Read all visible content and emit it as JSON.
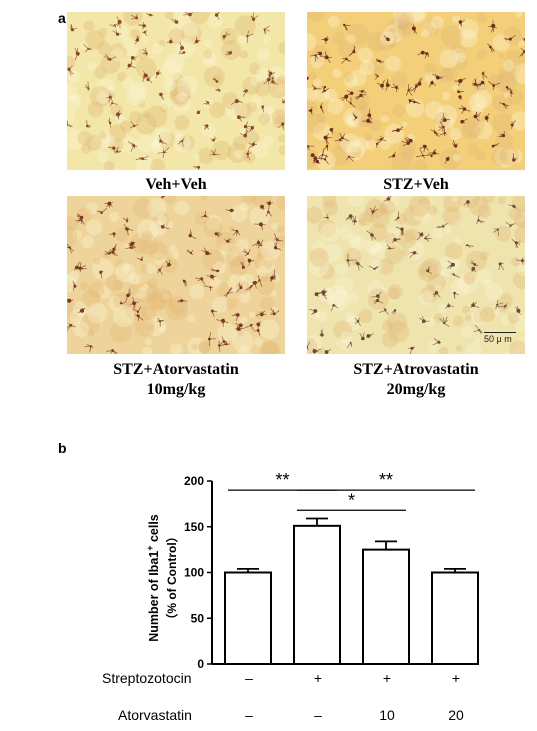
{
  "panels": {
    "a": "a",
    "b": "b"
  },
  "micrographs": [
    {
      "label": "Veh+Veh",
      "base": "#f2e6a8",
      "dots": "#8a4a2a",
      "density": 70
    },
    {
      "label": "STZ+Veh",
      "base": "#f3cf7a",
      "dots": "#6e2f1c",
      "density": 90
    },
    {
      "label": "STZ+Atorvastatin\n10mg/kg",
      "base": "#eed49a",
      "dots": "#7a3a24",
      "density": 80
    },
    {
      "label": "STZ+Atrovastatin\n20mg/kg",
      "base": "#efe4ae",
      "dots": "#6f4a36",
      "density": 60
    }
  ],
  "scale_bar": "50 μ m",
  "chart_data": {
    "type": "bar",
    "ylabel_line1": "Number of Iba1",
    "ylabel_sup": "+",
    "ylabel_line1_end": " cells",
    "ylabel_line2": "（% of Control）",
    "ylim": [
      0,
      200
    ],
    "yticks": [
      "0",
      "50",
      "100",
      "150",
      "200"
    ],
    "categories": [
      "1",
      "2",
      "3",
      "4"
    ],
    "values": [
      100,
      151,
      125,
      100
    ],
    "errors": [
      4,
      8,
      9,
      4
    ],
    "significance": [
      {
        "from": 0,
        "to": 1,
        "label": "**",
        "y": 190
      },
      {
        "from": 1,
        "to": 3,
        "label": "**",
        "y": 190
      },
      {
        "from": 1,
        "to": 2,
        "label": "*",
        "y": 168
      }
    ],
    "rows": [
      {
        "label": "Streptozotocin",
        "values": [
          "–",
          "+",
          "+",
          "+"
        ]
      },
      {
        "label": "Atorvastatin",
        "values": [
          "–",
          "–",
          "10",
          "20"
        ]
      }
    ]
  }
}
